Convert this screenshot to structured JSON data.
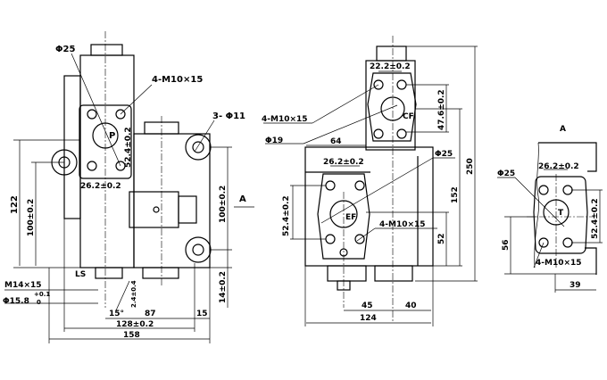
{
  "side_view": {
    "port_p_diameter": "Φ25",
    "thread_p": "4-M10×15",
    "mount_holes": "3- Φ11",
    "port_p_label": "P",
    "port_p_spacing_v": "52.4±0.2",
    "port_p_spacing_h": "26.2±0.2",
    "height_total": "122",
    "height_ear": "100±0.2",
    "height_right_holes": "100±0.2",
    "offset_bottom": "14±0.2",
    "view_arrow": "A",
    "ls_label": "LS",
    "ls_thread": "M14×15",
    "ls_bore": "Φ15.8",
    "ls_bore_tol_upper": "+0.1",
    "ls_bore_tol_lower": "0",
    "ls_depth": "2.4±0.4",
    "angle": "15°",
    "dim_87": "87",
    "dim_15": "15",
    "dim_128": "128±0.2",
    "dim_158": "158"
  },
  "front_view": {
    "cf_spacing_h": "22.2±0.2",
    "cf_thread": "4-M10×15",
    "cf_diameter": "Φ19",
    "cf_label": "CF",
    "cf_spacing_v": "47.6±0.2",
    "dim_64": "64",
    "ef_spacing_h": "26.2±0.2",
    "ef_diameter": "Φ25",
    "ef_label": "EF",
    "ef_thread": "4-M10×15",
    "ef_spacing_v": "52.4±0.2",
    "dim_250": "250",
    "dim_152": "152",
    "dim_52": "52",
    "dim_45": "45",
    "dim_40": "40",
    "dim_124": "124"
  },
  "view_a": {
    "title": "A",
    "t_diameter": "Φ25",
    "t_spacing_h": "26.2±0.2",
    "t_label": "T",
    "t_spacing_v": "52.4±0.2",
    "dim_56": "56",
    "t_thread": "4-M10×15",
    "dim_39": "39"
  }
}
